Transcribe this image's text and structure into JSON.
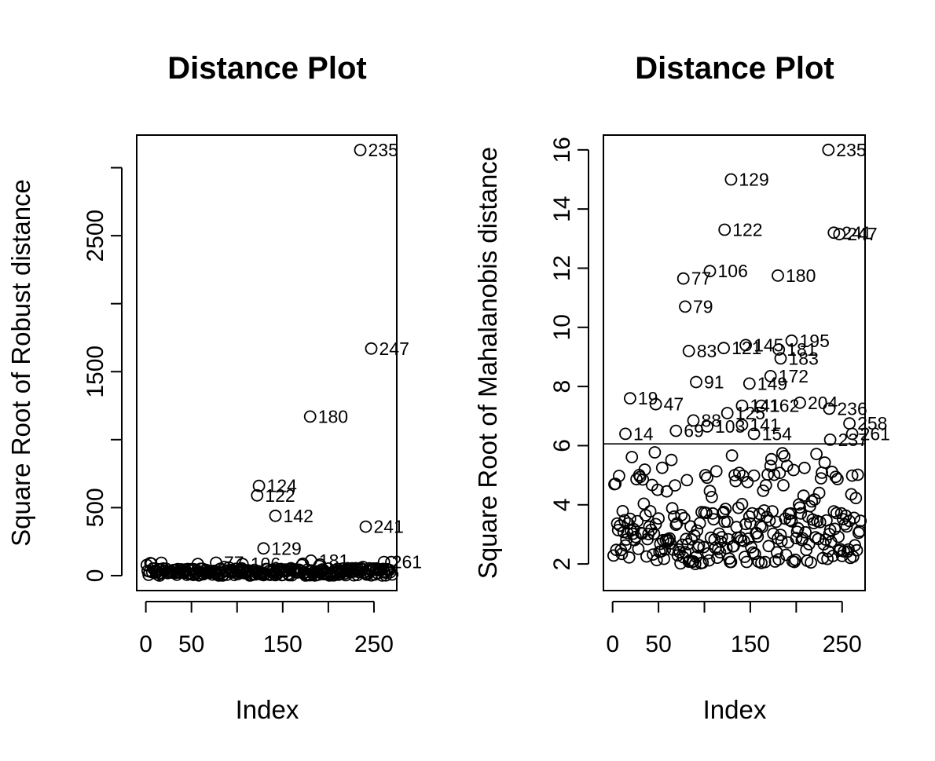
{
  "chart_data": [
    {
      "type": "scatter",
      "title": "Distance Plot",
      "xlabel": "Index",
      "ylabel": "Square Root of Robust distance",
      "xlim": [
        -10,
        275
      ],
      "ylim": [
        -110,
        3240
      ],
      "xticks": [
        0,
        50,
        150,
        250
      ],
      "yticks": [
        0,
        500,
        1500,
        2500
      ],
      "cutoff": null,
      "labeled_points": [
        {
          "x": 235,
          "y": 3130,
          "label": "235"
        },
        {
          "x": 247,
          "y": 1670,
          "label": "247"
        },
        {
          "x": 180,
          "y": 1170,
          "label": "180"
        },
        {
          "x": 124,
          "y": 660,
          "label": "124"
        },
        {
          "x": 122,
          "y": 590,
          "label": "122"
        },
        {
          "x": 142,
          "y": 440,
          "label": "142"
        },
        {
          "x": 241,
          "y": 360,
          "label": "241"
        },
        {
          "x": 129,
          "y": 200,
          "label": "129"
        },
        {
          "x": 77,
          "y": 95,
          "label": "77"
        },
        {
          "x": 106,
          "y": 85,
          "label": "106"
        },
        {
          "x": 181,
          "y": 110,
          "label": "181"
        },
        {
          "x": 261,
          "y": 100,
          "label": "261"
        }
      ]
    },
    {
      "type": "scatter",
      "title": "Distance Plot",
      "xlabel": "Index",
      "ylabel": "Square Root of Mahalanobis distance",
      "xlim": [
        -10,
        275
      ],
      "ylim": [
        1.1,
        16.5
      ],
      "xticks": [
        0,
        50,
        150,
        250
      ],
      "yticks": [
        2,
        4,
        6,
        8,
        10,
        12,
        14,
        16
      ],
      "cutoff": 6.06,
      "labeled_points": [
        {
          "x": 235,
          "y": 16.0,
          "label": "235"
        },
        {
          "x": 129,
          "y": 15.0,
          "label": "129"
        },
        {
          "x": 122,
          "y": 13.3,
          "label": "122"
        },
        {
          "x": 241,
          "y": 13.2,
          "label": "241"
        },
        {
          "x": 247,
          "y": 13.15,
          "label": "247"
        },
        {
          "x": 106,
          "y": 11.9,
          "label": "106"
        },
        {
          "x": 77,
          "y": 11.65,
          "label": "77"
        },
        {
          "x": 180,
          "y": 11.75,
          "label": "180"
        },
        {
          "x": 79,
          "y": 10.7,
          "label": "79"
        },
        {
          "x": 195,
          "y": 9.55,
          "label": "195"
        },
        {
          "x": 145,
          "y": 9.4,
          "label": "145"
        },
        {
          "x": 121,
          "y": 9.3,
          "label": "121"
        },
        {
          "x": 83,
          "y": 9.2,
          "label": "83"
        },
        {
          "x": 181,
          "y": 9.25,
          "label": "181"
        },
        {
          "x": 183,
          "y": 8.95,
          "label": "183"
        },
        {
          "x": 172,
          "y": 8.35,
          "label": "172"
        },
        {
          "x": 91,
          "y": 8.15,
          "label": "91"
        },
        {
          "x": 149,
          "y": 8.1,
          "label": "149"
        },
        {
          "x": 19,
          "y": 7.6,
          "label": "19"
        },
        {
          "x": 204,
          "y": 7.45,
          "label": "204"
        },
        {
          "x": 47,
          "y": 7.4,
          "label": "47"
        },
        {
          "x": 162,
          "y": 7.35,
          "label": "162"
        },
        {
          "x": 141,
          "y": 7.35,
          "label": "141"
        },
        {
          "x": 236,
          "y": 7.25,
          "label": "236"
        },
        {
          "x": 125,
          "y": 7.1,
          "label": "125"
        },
        {
          "x": 88,
          "y": 6.85,
          "label": "88"
        },
        {
          "x": 258,
          "y": 6.75,
          "label": "258"
        },
        {
          "x": 141,
          "y": 6.7,
          "label": "141"
        },
        {
          "x": 103,
          "y": 6.65,
          "label": "103"
        },
        {
          "x": 69,
          "y": 6.5,
          "label": "69"
        },
        {
          "x": 154,
          "y": 6.4,
          "label": "154"
        },
        {
          "x": 261,
          "y": 6.4,
          "label": "261"
        },
        {
          "x": 14,
          "y": 6.4,
          "label": "14"
        },
        {
          "x": 237,
          "y": 6.2,
          "label": "237"
        }
      ]
    }
  ]
}
